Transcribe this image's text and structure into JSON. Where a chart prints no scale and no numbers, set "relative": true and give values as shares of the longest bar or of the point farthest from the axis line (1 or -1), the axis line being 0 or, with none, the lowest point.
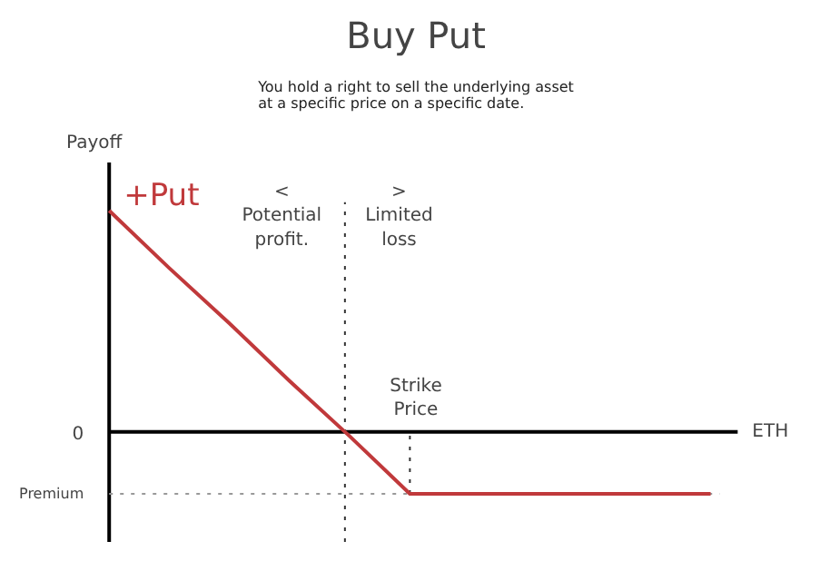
{
  "chart_data": {
    "type": "line",
    "title": "Buy Put",
    "subtitle": "You hold a right to sell the underlying asset\nat a specific price on a specific date.",
    "xlabel": "ETH",
    "ylabel": "Payoff",
    "relative": true,
    "categories": [
      null,
      null,
      null,
      null,
      null,
      null,
      null,
      null,
      null,
      null,
      null
    ],
    "series": [
      {
        "name": "+Put",
        "color": "#c0393b",
        "values": [
          1,
          0.74,
          0.49,
          0.23,
          -0.02,
          -0.28,
          -0.28,
          -0.28,
          -0.28,
          -0.28,
          -0.28
        ]
      }
    ],
    "ref_lines": [
      {
        "axis": "y",
        "value": -0.28,
        "line_style": "dotted",
        "color": "#999999"
      }
    ],
    "annotations": [
      "0",
      "Premium",
      "<\nPotential\nprofit.",
      ">\nLimited\nloss",
      "Strike\nPrice"
    ]
  }
}
